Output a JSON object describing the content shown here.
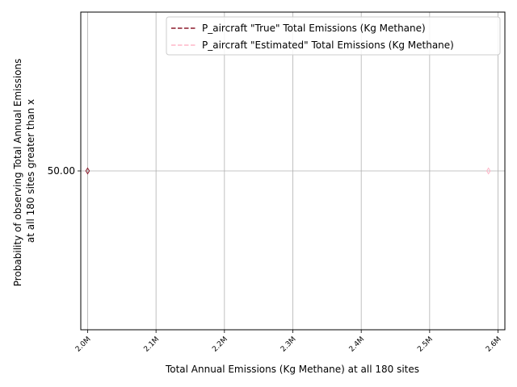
{
  "chart_data": {
    "type": "line",
    "xlabel": "Total Annual Emissions (Kg Methane) at all 180 sites",
    "ylabel_lines": [
      "Probability of observing Total Annual Emissions",
      "at all 180 sites greater than x"
    ],
    "xlim": [
      1990000,
      2610000
    ],
    "ylim": [
      0,
      100
    ],
    "x_scale": "linear",
    "y_scale": "linear",
    "grid": true,
    "legend_position": "top-right",
    "x_ticks": [
      {
        "value": 2000000,
        "label": "2.0M"
      },
      {
        "value": 2100000,
        "label": "2.1M"
      },
      {
        "value": 2200000,
        "label": "2.2M"
      },
      {
        "value": 2300000,
        "label": "2.3M"
      },
      {
        "value": 2400000,
        "label": "2.4M"
      },
      {
        "value": 2500000,
        "label": "2.5M"
      },
      {
        "value": 2600000,
        "label": "2.6M"
      }
    ],
    "y_ticks": [
      {
        "value": 50,
        "label": "50.00"
      }
    ],
    "series": [
      {
        "name": "P_aircraft \"True\" Total Emissions (Kg Methane)",
        "color": "#8b1a2b",
        "dash": "dashed",
        "points": [
          {
            "x": 2000000,
            "y": 50
          }
        ]
      },
      {
        "name": "P_aircraft \"Estimated\" Total Emissions (Kg Methane)",
        "color": "#ffb6c8",
        "dash": "dashed",
        "points": [
          {
            "x": 2586000,
            "y": 50
          }
        ]
      }
    ]
  }
}
